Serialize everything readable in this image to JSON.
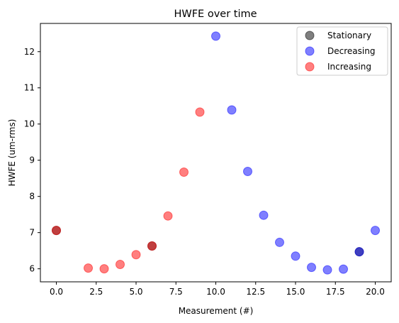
{
  "chart_data": {
    "type": "scatter",
    "title": "HWFE over time",
    "xlabel": "Measurement (#)",
    "ylabel": "HWFE (um-rms)",
    "xlim": [
      -1,
      21
    ],
    "ylim": [
      5.64,
      12.78
    ],
    "xticks": [
      0,
      2.5,
      5,
      7.5,
      10,
      12.5,
      15,
      17.5,
      20
    ],
    "xtick_labels": [
      "0.0",
      "2.5",
      "5.0",
      "7.5",
      "10.0",
      "12.5",
      "15.0",
      "17.5",
      "20.0"
    ],
    "yticks": [
      6,
      7,
      8,
      9,
      10,
      11,
      12
    ],
    "ytick_labels": [
      "6",
      "7",
      "8",
      "9",
      "10",
      "11",
      "12"
    ],
    "grid": false,
    "legend_position": "top-right",
    "series": [
      {
        "name": "Stationary",
        "color": "#000000",
        "points": [
          {
            "x": 0,
            "y": 7.06
          },
          {
            "x": 6,
            "y": 6.63
          },
          {
            "x": 19,
            "y": 6.47
          }
        ]
      },
      {
        "name": "Decreasing",
        "color": "#0000ff",
        "points": [
          {
            "x": 10,
            "y": 12.43
          },
          {
            "x": 11,
            "y": 10.39
          },
          {
            "x": 12,
            "y": 8.69
          },
          {
            "x": 13,
            "y": 7.48
          },
          {
            "x": 14,
            "y": 6.73
          },
          {
            "x": 15,
            "y": 6.35
          },
          {
            "x": 16,
            "y": 6.04
          },
          {
            "x": 17,
            "y": 5.97
          },
          {
            "x": 18,
            "y": 5.99
          },
          {
            "x": 19,
            "y": 6.47
          },
          {
            "x": 20,
            "y": 7.06
          }
        ]
      },
      {
        "name": "Increasing",
        "color": "#ff0000",
        "points": [
          {
            "x": 0,
            "y": 7.06
          },
          {
            "x": 2,
            "y": 6.02
          },
          {
            "x": 3,
            "y": 6.0
          },
          {
            "x": 4,
            "y": 6.12
          },
          {
            "x": 5,
            "y": 6.39
          },
          {
            "x": 6,
            "y": 6.63
          },
          {
            "x": 7,
            "y": 7.46
          },
          {
            "x": 8,
            "y": 8.67
          },
          {
            "x": 9,
            "y": 10.33
          }
        ]
      }
    ]
  }
}
